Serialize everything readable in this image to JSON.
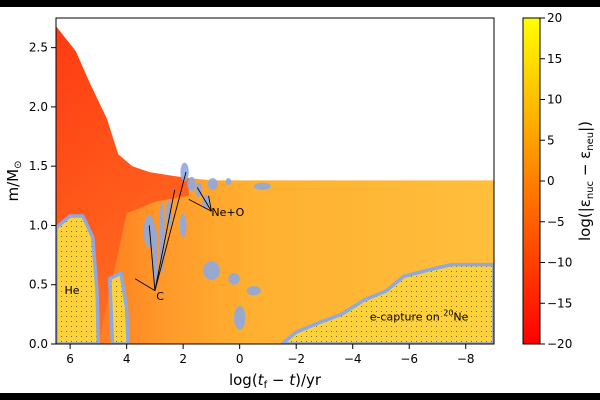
{
  "chart_data": {
    "type": "heatmap",
    "xlabel": "log(t_f − t)/yr",
    "ylabel": "m/M⊙",
    "xlim": [
      6.5,
      -9.0
    ],
    "ylim": [
      0.0,
      2.75
    ],
    "x_ticks": [
      6,
      4,
      2,
      0,
      -2,
      -4,
      -6,
      -8
    ],
    "x_tick_labels": [
      "6",
      "4",
      "2",
      "0",
      "−2",
      "−4",
      "−6",
      "−8"
    ],
    "y_ticks": [
      0.0,
      0.5,
      1.0,
      1.5,
      2.0,
      2.5
    ],
    "y_tick_labels": [
      "0.0",
      "0.5",
      "1.0",
      "1.5",
      "2.0",
      "2.5"
    ],
    "colorbar": {
      "label": "log(|ε_nuc − ε_neu|)",
      "range": [
        -20,
        20
      ],
      "ticks": [
        20,
        15,
        10,
        5,
        0,
        -5,
        -10,
        -15,
        -20
      ],
      "tick_labels": [
        "20",
        "15",
        "10",
        "5",
        "0",
        "−5",
        "−10",
        "−15",
        "−20"
      ],
      "colormap": "autumn",
      "color_low": "#ff0000",
      "color_high": "#ffff00"
    },
    "stellar_surface_mass": [
      [
        6.5,
        2.68
      ],
      [
        5.8,
        2.47
      ],
      [
        5.3,
        2.2
      ],
      [
        4.7,
        1.9
      ],
      [
        4.3,
        1.6
      ],
      [
        3.8,
        1.5
      ],
      [
        3.2,
        1.45
      ],
      [
        2.4,
        1.42
      ],
      [
        1.8,
        1.4
      ],
      [
        1.0,
        1.38
      ],
      [
        -9.0,
        1.38
      ]
    ],
    "burning_region_color": "#8ea8e0",
    "annotations": [
      {
        "text": "He",
        "x": 6.2,
        "y": 0.42
      },
      {
        "text": "C",
        "x": 2.95,
        "y": 0.37
      },
      {
        "text": "Ne+O",
        "x": 1.0,
        "y": 1.08
      },
      {
        "text": "e-capture on ",
        "sup": "20",
        "text_end": "Ne",
        "x": -4.6,
        "y": 0.2
      }
    ],
    "regions": [
      {
        "name": "He",
        "type": "hatched",
        "boundary": [
          [
            6.5,
            0.0
          ],
          [
            6.5,
            0.98
          ],
          [
            6.0,
            1.08
          ],
          [
            5.55,
            1.08
          ],
          [
            5.2,
            0.9
          ],
          [
            5.05,
            0.45
          ],
          [
            5.0,
            0.0
          ]
        ]
      },
      {
        "name": "He-pocket",
        "type": "hatched",
        "boundary": [
          [
            4.5,
            0.0
          ],
          [
            4.6,
            0.55
          ],
          [
            4.2,
            0.6
          ],
          [
            4.0,
            0.3
          ],
          [
            3.95,
            0.0
          ]
        ]
      },
      {
        "name": "e-capture",
        "type": "hatched",
        "boundary": [
          [
            -1.5,
            0.0
          ],
          [
            -2.0,
            0.1
          ],
          [
            -2.8,
            0.18
          ],
          [
            -3.6,
            0.25
          ],
          [
            -4.4,
            0.37
          ],
          [
            -5.2,
            0.45
          ],
          [
            -5.8,
            0.57
          ],
          [
            -6.6,
            0.62
          ],
          [
            -7.5,
            0.67
          ],
          [
            -9.0,
            0.67
          ],
          [
            -9.0,
            0.0
          ]
        ]
      }
    ]
  }
}
